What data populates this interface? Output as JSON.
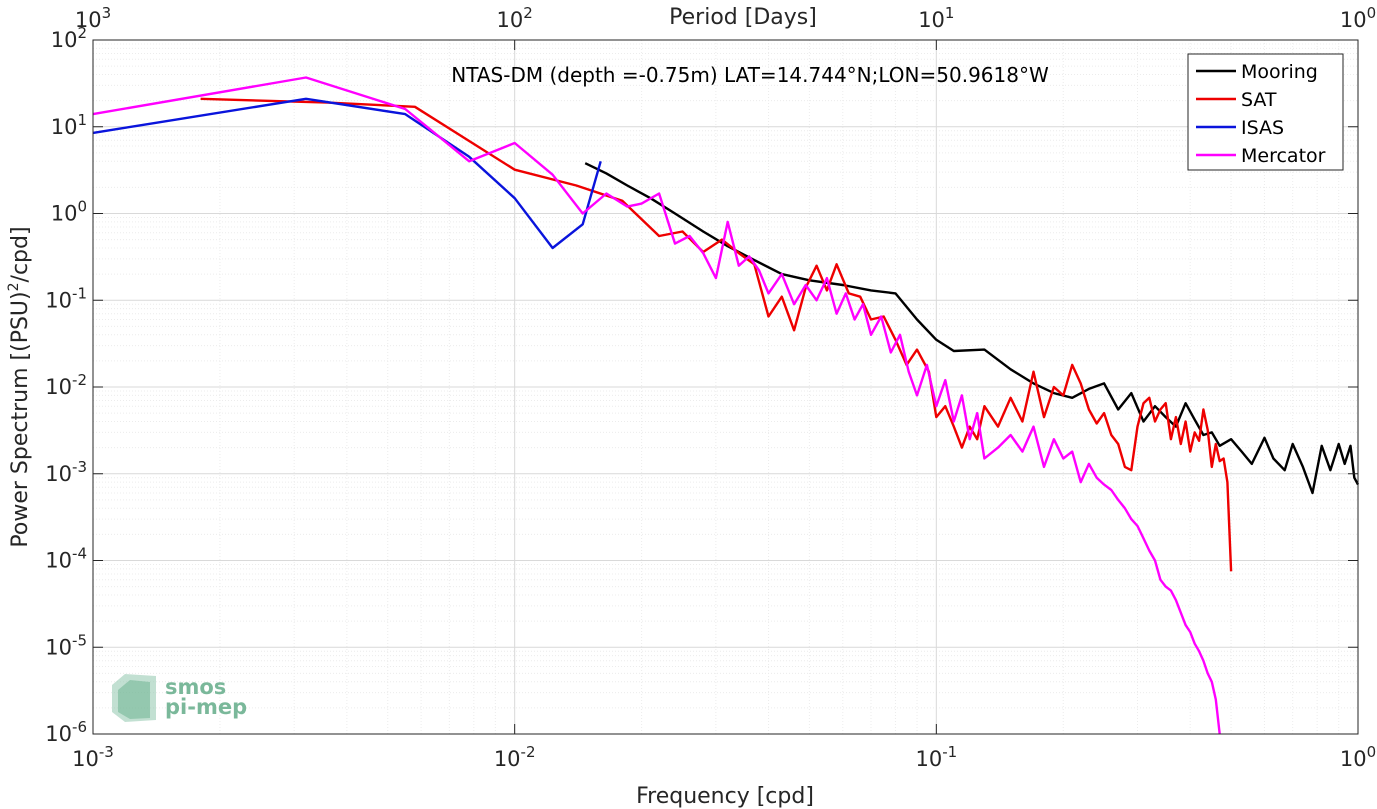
{
  "chart_data": {
    "type": "line",
    "title": "NTAS-DM (depth =-0.75m) LAT=14.744°N;LON=50.9618°W",
    "xlabel": "Frequency [cpd]",
    "ylabel": "Power Spectrum [(PSU)",
    "ylabel_sup": "2",
    "ylabel_tail": "/cpd]",
    "x2label": "Period [Days]",
    "xscale": "log",
    "yscale": "log",
    "xlim": [
      0.001,
      1
    ],
    "ylim": [
      1e-06,
      100
    ],
    "grid": true,
    "legend_position": "top-right",
    "x_ticks": [
      {
        "value": 0.001,
        "base": "10",
        "exp": "-3"
      },
      {
        "value": 0.01,
        "base": "10",
        "exp": "-2"
      },
      {
        "value": 0.1,
        "base": "10",
        "exp": "-1"
      },
      {
        "value": 1,
        "base": "10",
        "exp": "0"
      }
    ],
    "x2_ticks": [
      {
        "value": 0.001,
        "base": "10",
        "exp": "3"
      },
      {
        "value": 0.01,
        "base": "10",
        "exp": "2"
      },
      {
        "value": 0.1,
        "base": "10",
        "exp": "1"
      },
      {
        "value": 1,
        "base": "10",
        "exp": "0"
      }
    ],
    "y_ticks": [
      {
        "value": 100,
        "base": "10",
        "exp": "2"
      },
      {
        "value": 10,
        "base": "10",
        "exp": "1"
      },
      {
        "value": 1,
        "base": "10",
        "exp": "0"
      },
      {
        "value": 0.1,
        "base": "10",
        "exp": "-1"
      },
      {
        "value": 0.01,
        "base": "10",
        "exp": "-2"
      },
      {
        "value": 0.001,
        "base": "10",
        "exp": "-3"
      },
      {
        "value": 0.0001,
        "base": "10",
        "exp": "-4"
      },
      {
        "value": 1e-05,
        "base": "10",
        "exp": "-5"
      },
      {
        "value": 1e-06,
        "base": "10",
        "exp": "-6"
      }
    ],
    "series": [
      {
        "name": "Mooring",
        "color": "#000000",
        "x": [
          0.0147,
          0.0165,
          0.0185,
          0.021,
          0.024,
          0.028,
          0.032,
          0.037,
          0.043,
          0.05,
          0.06,
          0.07,
          0.08,
          0.09,
          0.1,
          0.11,
          0.13,
          0.15,
          0.17,
          0.19,
          0.21,
          0.23,
          0.25,
          0.27,
          0.29,
          0.31,
          0.33,
          0.35,
          0.37,
          0.39,
          0.41,
          0.43,
          0.45,
          0.47,
          0.5,
          0.53,
          0.56,
          0.6,
          0.63,
          0.67,
          0.7,
          0.74,
          0.78,
          0.82,
          0.86,
          0.9,
          0.93,
          0.96,
          0.98,
          1.0
        ],
        "y": [
          3.8,
          2.9,
          2.1,
          1.5,
          1.0,
          0.62,
          0.42,
          0.29,
          0.2,
          0.17,
          0.15,
          0.13,
          0.12,
          0.06,
          0.035,
          0.026,
          0.027,
          0.016,
          0.011,
          0.0085,
          0.0075,
          0.0095,
          0.011,
          0.0055,
          0.0085,
          0.004,
          0.006,
          0.0045,
          0.0035,
          0.0065,
          0.0042,
          0.0028,
          0.003,
          0.0021,
          0.0025,
          0.0018,
          0.0013,
          0.0026,
          0.0015,
          0.0011,
          0.0022,
          0.0012,
          0.0006,
          0.0021,
          0.0011,
          0.0022,
          0.0013,
          0.0021,
          0.0009,
          0.00075
        ]
      },
      {
        "name": "SAT",
        "color": "#ee0000",
        "x": [
          0.0018,
          0.0036,
          0.0058,
          0.01,
          0.014,
          0.018,
          0.022,
          0.025,
          0.028,
          0.031,
          0.034,
          0.037,
          0.04,
          0.043,
          0.046,
          0.049,
          0.052,
          0.055,
          0.058,
          0.062,
          0.066,
          0.07,
          0.075,
          0.08,
          0.085,
          0.09,
          0.096,
          0.1,
          0.105,
          0.11,
          0.115,
          0.12,
          0.125,
          0.13,
          0.14,
          0.15,
          0.16,
          0.17,
          0.18,
          0.19,
          0.2,
          0.21,
          0.22,
          0.23,
          0.24,
          0.25,
          0.26,
          0.27,
          0.28,
          0.29,
          0.3,
          0.31,
          0.32,
          0.33,
          0.34,
          0.35,
          0.36,
          0.37,
          0.38,
          0.39,
          0.4,
          0.41,
          0.42,
          0.43,
          0.44,
          0.45,
          0.46,
          0.47,
          0.48,
          0.49,
          0.5
        ],
        "y": [
          21,
          19,
          17,
          3.2,
          2.1,
          1.4,
          0.55,
          0.62,
          0.36,
          0.5,
          0.35,
          0.26,
          0.065,
          0.11,
          0.045,
          0.14,
          0.25,
          0.13,
          0.26,
          0.12,
          0.11,
          0.06,
          0.065,
          0.035,
          0.018,
          0.027,
          0.015,
          0.0045,
          0.006,
          0.0035,
          0.002,
          0.0035,
          0.0025,
          0.006,
          0.0035,
          0.0075,
          0.004,
          0.015,
          0.0045,
          0.01,
          0.008,
          0.018,
          0.011,
          0.0055,
          0.0038,
          0.005,
          0.0028,
          0.0022,
          0.0012,
          0.0011,
          0.0035,
          0.0065,
          0.0075,
          0.004,
          0.0055,
          0.0065,
          0.0025,
          0.0045,
          0.0022,
          0.004,
          0.0018,
          0.003,
          0.0024,
          0.0055,
          0.0032,
          0.0012,
          0.0022,
          0.0014,
          0.0015,
          0.0008,
          7.5e-05
        ]
      },
      {
        "name": "ISAS",
        "color": "#0a14dc",
        "x": [
          0.001,
          0.0032,
          0.0055,
          0.0078,
          0.01,
          0.0123,
          0.0145,
          0.016
        ],
        "y": [
          8.5,
          21,
          14,
          4.5,
          1.5,
          0.4,
          0.75,
          4.0
        ]
      },
      {
        "name": "Mercator",
        "color": "#ff00ff",
        "x": [
          0.001,
          0.0032,
          0.0055,
          0.0078,
          0.01,
          0.0123,
          0.0145,
          0.0165,
          0.0185,
          0.02,
          0.022,
          0.024,
          0.026,
          0.028,
          0.03,
          0.032,
          0.034,
          0.036,
          0.038,
          0.04,
          0.043,
          0.046,
          0.049,
          0.052,
          0.055,
          0.058,
          0.061,
          0.064,
          0.067,
          0.07,
          0.074,
          0.078,
          0.082,
          0.086,
          0.09,
          0.095,
          0.1,
          0.105,
          0.11,
          0.115,
          0.12,
          0.125,
          0.13,
          0.14,
          0.15,
          0.16,
          0.17,
          0.18,
          0.19,
          0.2,
          0.21,
          0.22,
          0.23,
          0.24,
          0.25,
          0.26,
          0.27,
          0.28,
          0.29,
          0.3,
          0.31,
          0.32,
          0.33,
          0.34,
          0.35,
          0.36,
          0.37,
          0.38,
          0.39,
          0.4,
          0.41,
          0.42,
          0.43,
          0.44,
          0.45,
          0.46,
          0.47
        ],
        "y": [
          14,
          37,
          16,
          4.0,
          6.5,
          2.8,
          1.0,
          1.7,
          1.2,
          1.3,
          1.7,
          0.45,
          0.55,
          0.35,
          0.18,
          0.8,
          0.25,
          0.32,
          0.22,
          0.12,
          0.2,
          0.09,
          0.15,
          0.1,
          0.18,
          0.07,
          0.12,
          0.06,
          0.09,
          0.04,
          0.065,
          0.025,
          0.04,
          0.015,
          0.008,
          0.018,
          0.006,
          0.012,
          0.004,
          0.008,
          0.0025,
          0.005,
          0.0015,
          0.002,
          0.0028,
          0.0018,
          0.0035,
          0.0012,
          0.0025,
          0.0015,
          0.0018,
          0.0008,
          0.0013,
          0.0009,
          0.00075,
          0.00065,
          0.0005,
          0.0004,
          0.0003,
          0.00025,
          0.00018,
          0.00013,
          0.0001,
          6e-05,
          5e-05,
          4.5e-05,
          3.5e-05,
          2.5e-05,
          1.8e-05,
          1.5e-05,
          1.1e-05,
          9e-06,
          7e-06,
          5e-06,
          4e-06,
          2.5e-06,
          1e-06
        ]
      }
    ]
  },
  "watermark": {
    "line1": "smos",
    "line2": "pi-mep",
    "color": "#7ab89a"
  }
}
